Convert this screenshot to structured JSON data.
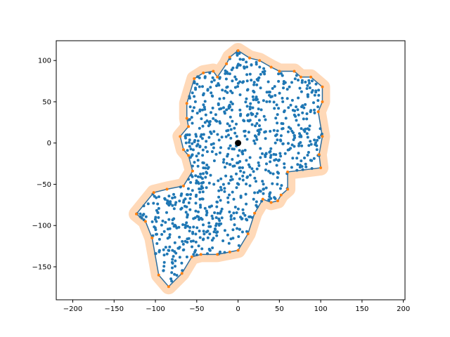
{
  "chart_data": {
    "type": "scatter",
    "title": "",
    "xlabel": "",
    "ylabel": "",
    "xlim": [
      -220,
      202
    ],
    "ylim": [
      -190,
      124
    ],
    "xticks": [
      -200,
      -150,
      -100,
      -50,
      0,
      50,
      100,
      150,
      200
    ],
    "yticks": [
      -150,
      -100,
      -50,
      0,
      50,
      100
    ],
    "xtick_labels": [
      "−200",
      "−150",
      "−100",
      "−50",
      "0",
      "50",
      "100",
      "150",
      "200"
    ],
    "ytick_labels": [
      "−150",
      "−100",
      "−50",
      "0",
      "50",
      "100"
    ],
    "grid": false,
    "colors": {
      "points": "#1f77b4",
      "hull_line": "#2e6e9e",
      "hull_vertex": "#ff7f0e",
      "buffer": "#ffd9b8",
      "center": "#000000"
    },
    "point_count": 900,
    "hull": [
      [
        -84,
        -174
      ],
      [
        -96,
        -160
      ],
      [
        -104,
        -115
      ],
      [
        -112,
        -95
      ],
      [
        -123,
        -86
      ],
      [
        -102,
        -60
      ],
      [
        -86,
        -56
      ],
      [
        -66,
        -52
      ],
      [
        -55,
        -34
      ],
      [
        -60,
        -15
      ],
      [
        -66,
        -8
      ],
      [
        -70,
        8
      ],
      [
        -60,
        20
      ],
      [
        -62,
        30
      ],
      [
        -62,
        48
      ],
      [
        -53,
        78
      ],
      [
        -42,
        85
      ],
      [
        -30,
        87
      ],
      [
        -25,
        80
      ],
      [
        -14,
        96
      ],
      [
        -10,
        104
      ],
      [
        0,
        112
      ],
      [
        14,
        103
      ],
      [
        26,
        100
      ],
      [
        40,
        92
      ],
      [
        50,
        87
      ],
      [
        68,
        87
      ],
      [
        76,
        80
      ],
      [
        88,
        80
      ],
      [
        102,
        68
      ],
      [
        102,
        50
      ],
      [
        97,
        38
      ],
      [
        102,
        8
      ],
      [
        98,
        -14
      ],
      [
        100,
        -30
      ],
      [
        60,
        -35
      ],
      [
        60,
        -56
      ],
      [
        52,
        -63
      ],
      [
        48,
        -70
      ],
      [
        40,
        -72
      ],
      [
        30,
        -68
      ],
      [
        20,
        -85
      ],
      [
        12,
        -110
      ],
      [
        0,
        -130
      ],
      [
        -10,
        -132
      ],
      [
        -25,
        -135
      ],
      [
        -45,
        -135
      ],
      [
        -56,
        -138
      ],
      [
        -68,
        -158
      ]
    ],
    "center": [
      0,
      0
    ]
  }
}
